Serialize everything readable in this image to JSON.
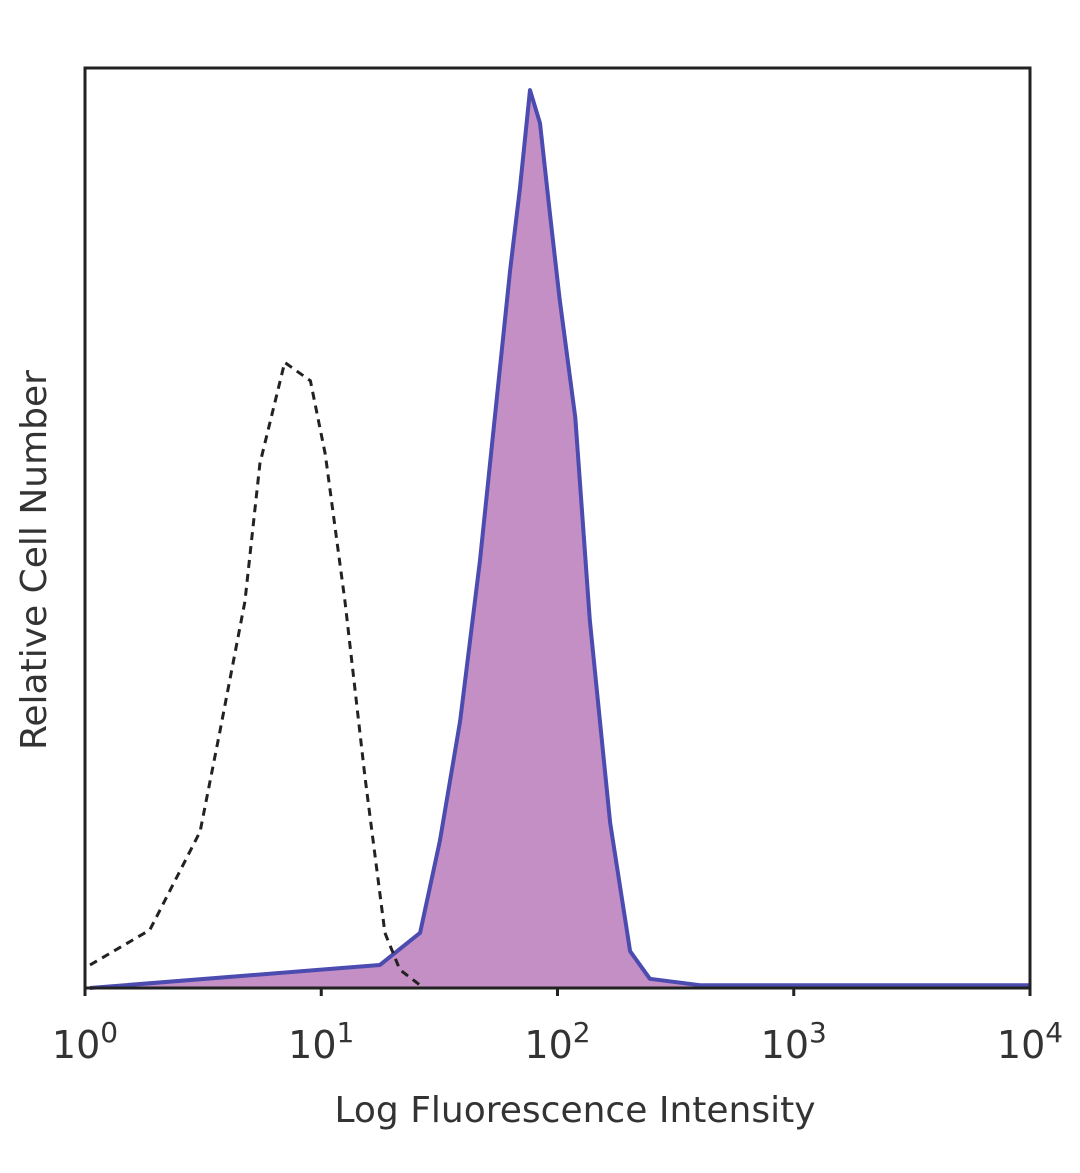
{
  "chart_data": {
    "type": "histogram-overlay",
    "x_label": "Log Fluorescence Intensity",
    "y_label": "Relative Cell Number",
    "xscale": "log",
    "xlim": [
      1,
      10000
    ],
    "ylim": [
      0,
      100
    ],
    "xticks": [
      {
        "value": 1,
        "label": "10",
        "exponent": "0"
      },
      {
        "value": 10,
        "label": "10",
        "exponent": "1"
      },
      {
        "value": 100,
        "label": "10",
        "exponent": "2"
      },
      {
        "value": 1000,
        "label": "10",
        "exponent": "3"
      },
      {
        "value": 10000,
        "label": "10",
        "exponent": "4"
      }
    ],
    "series": [
      {
        "style": "dashed",
        "color": "#222222",
        "x": [
          1.05,
          1.88,
          3.07,
          3.73,
          4.75,
          5.5,
          7.0,
          9.0,
          10.4,
          12.6,
          15.3,
          18.6,
          21.5,
          26.2
        ],
        "values": [
          2.5,
          6.3,
          17,
          28,
          42,
          57,
          68,
          66,
          58,
          42,
          23,
          6,
          2,
          0.3
        ]
      },
      {
        "style": "filled",
        "color": "#4b4bb0",
        "fill": "#c48fc4",
        "x": [
          1.05,
          10,
          17.7,
          26.2,
          31.8,
          38.7,
          47,
          54.3,
          63,
          69.4,
          76.5,
          84.3,
          93,
          102,
          119,
          137,
          167,
          203,
          246,
          401,
          10000
        ],
        "values": [
          0,
          2,
          2.5,
          6,
          16,
          29,
          46.5,
          62,
          78,
          87,
          97.6,
          94,
          84,
          75,
          62,
          40,
          18,
          4,
          1,
          0.3,
          0.3
        ]
      }
    ]
  }
}
